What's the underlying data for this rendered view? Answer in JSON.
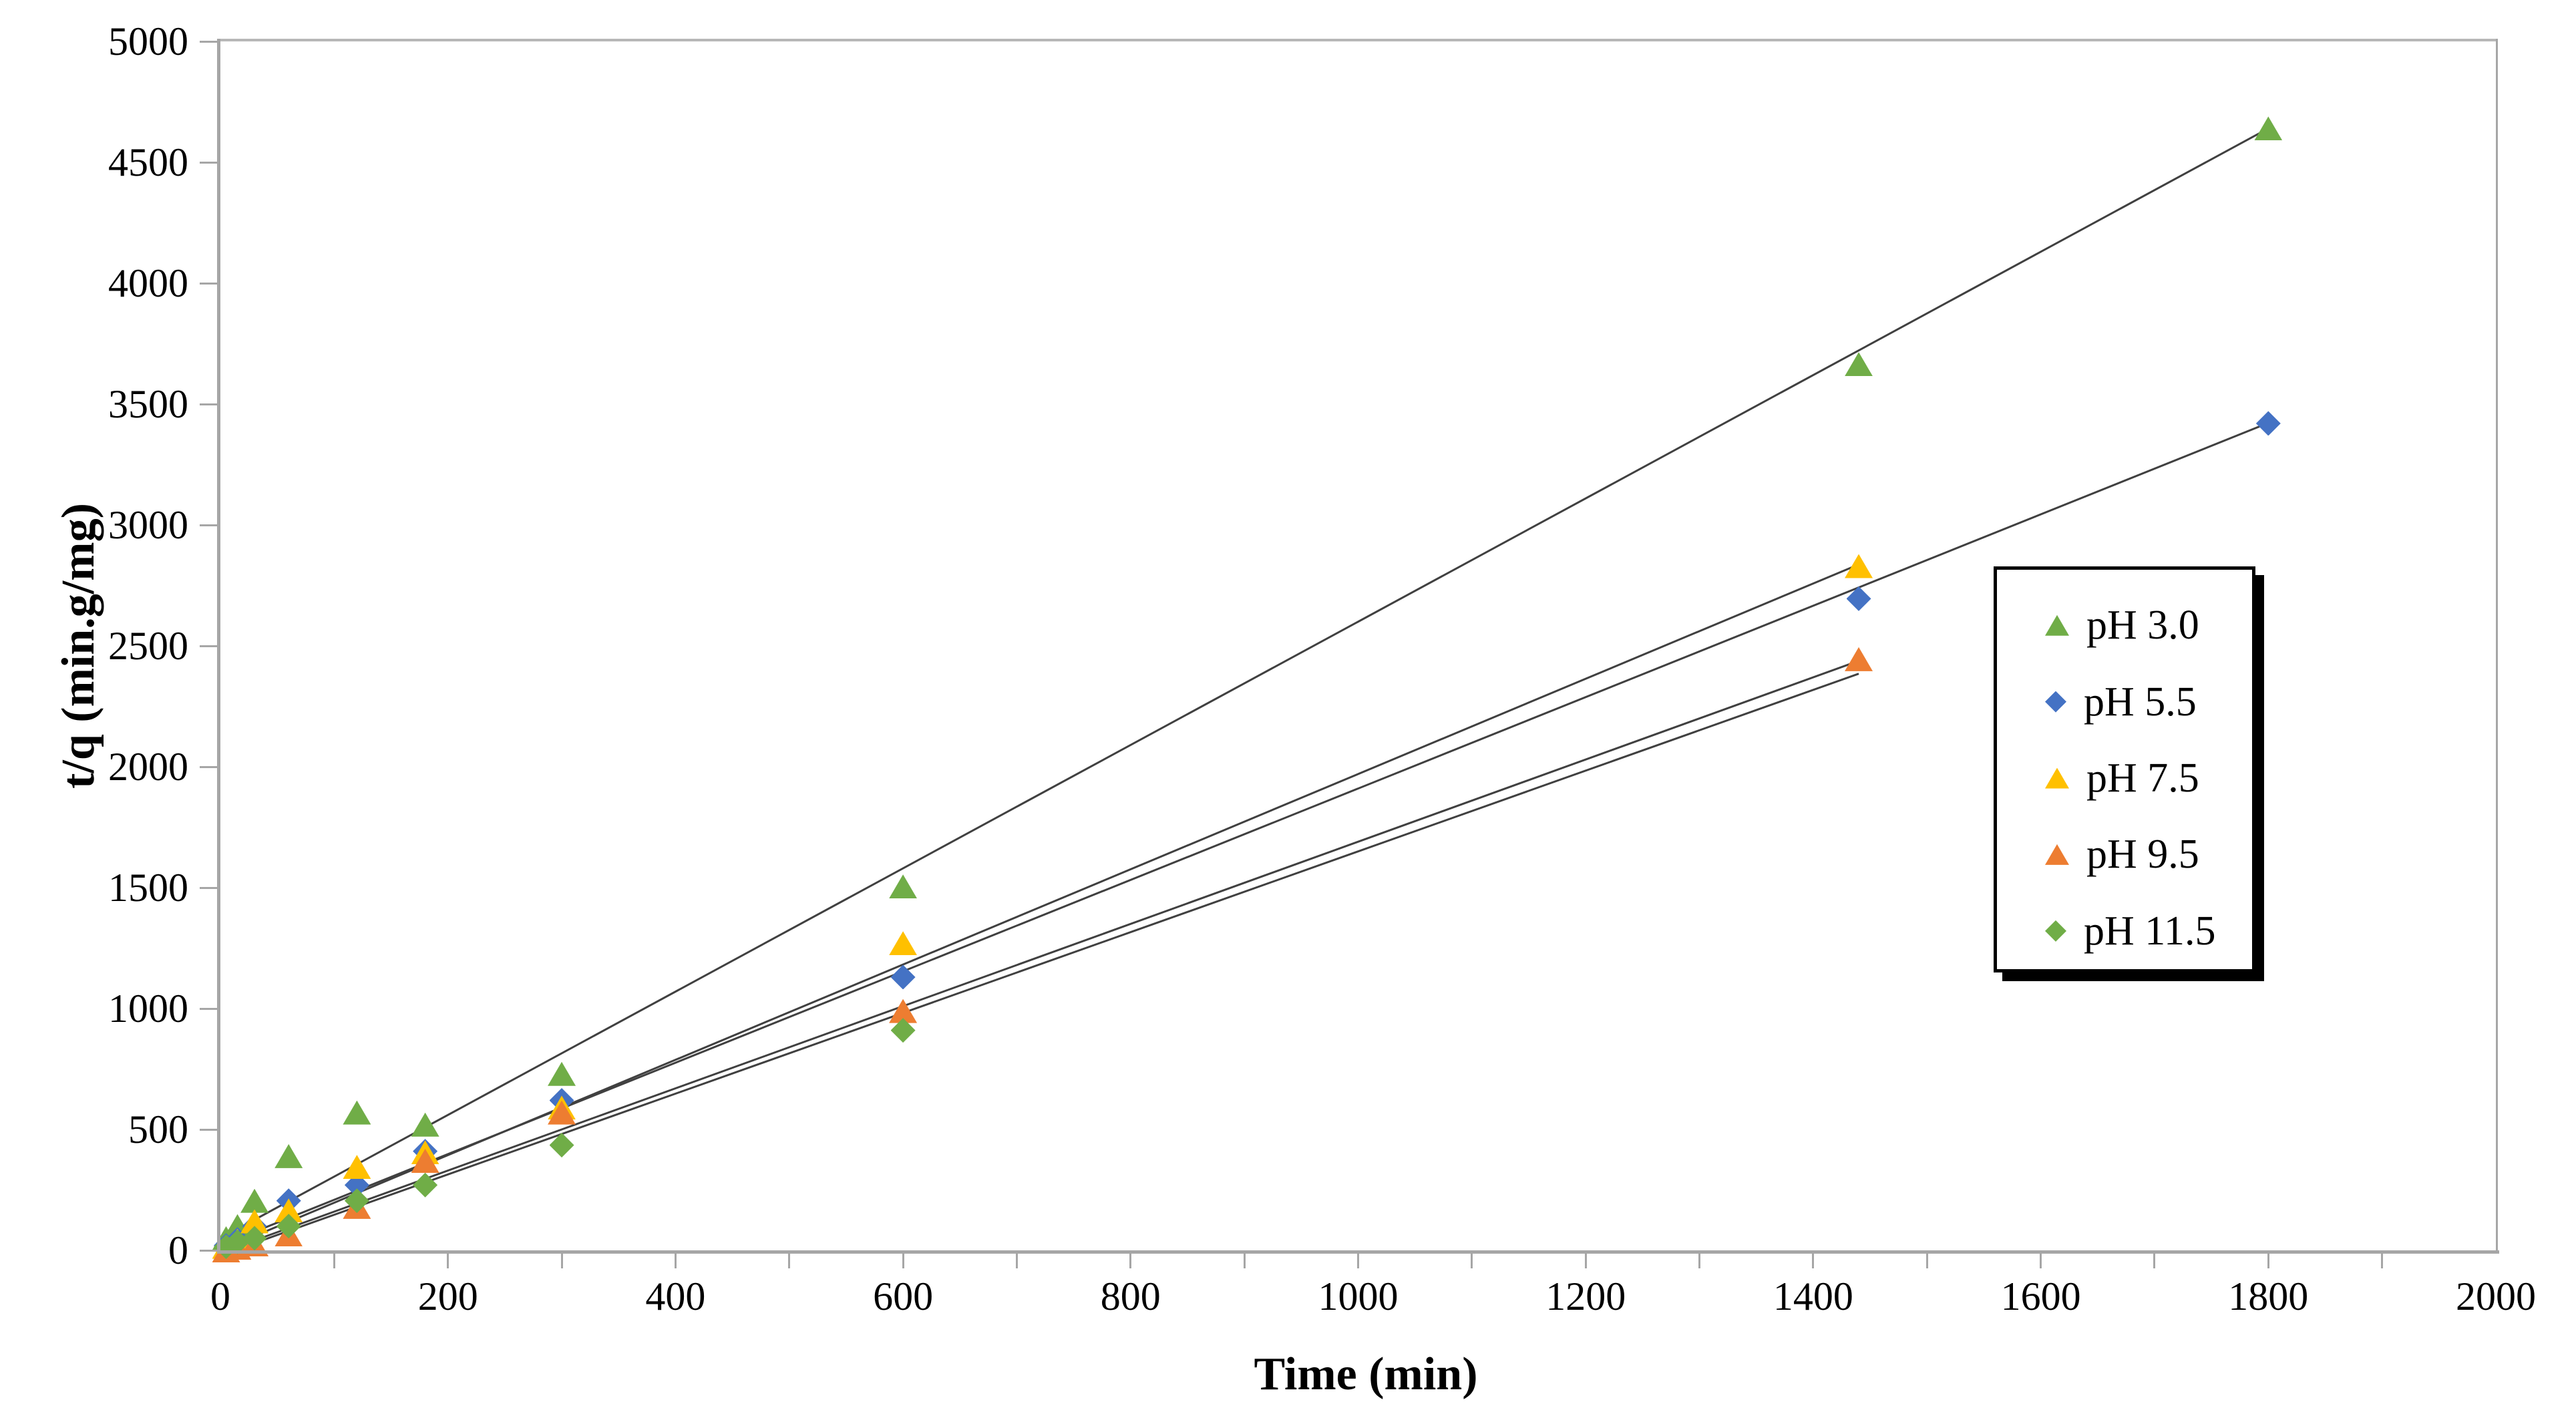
{
  "chart_data": {
    "type": "scatter",
    "title": "",
    "xlabel": "Time (min)",
    "ylabel": "t/q (min.g/mg)",
    "xlim": [
      0,
      2000
    ],
    "ylim": [
      0,
      5000
    ],
    "x_tick_step": 200,
    "x_minor_tick_step": 100,
    "y_tick_step": 500,
    "x_tick_labels": [
      "0",
      "200",
      "400",
      "600",
      "800",
      "1000",
      "1200",
      "1400",
      "1600",
      "1800",
      "2000"
    ],
    "y_tick_labels": [
      "0",
      "500",
      "1000",
      "1500",
      "2000",
      "2500",
      "3000",
      "3500",
      "4000",
      "4500",
      "5000"
    ],
    "grid": false,
    "legend_position": "middle-right",
    "axis_color": "#a6a6a6",
    "trendline_color": "#404040",
    "text_color": "#000000",
    "series": [
      {
        "name": "pH 3.0",
        "marker": "triangle",
        "color": "#70ad47",
        "x": [
          5,
          15,
          30,
          60,
          120,
          180,
          300,
          600,
          1440,
          1800
        ],
        "y": [
          50,
          100,
          205,
          390,
          570,
          520,
          730,
          1505,
          3665,
          4640
        ],
        "trend": {
          "slope": 2.55,
          "intercept": 50,
          "x_end": 1800
        }
      },
      {
        "name": "pH 5.5",
        "marker": "diamond",
        "color": "#4472c4",
        "x": [
          5,
          15,
          30,
          60,
          120,
          180,
          300,
          600,
          1440,
          1800
        ],
        "y": [
          20,
          45,
          100,
          205,
          270,
          410,
          620,
          1130,
          2695,
          3420
        ],
        "trend": {
          "slope": 1.89,
          "intercept": 20,
          "x_end": 1800
        }
      },
      {
        "name": "pH 7.5",
        "marker": "triangle",
        "color": "#ffc000",
        "x": [
          5,
          15,
          30,
          60,
          120,
          180,
          300,
          600,
          1440
        ],
        "y": [
          15,
          40,
          120,
          165,
          345,
          405,
          590,
          1270,
          2830
        ],
        "trend": {
          "slope": 1.97,
          "intercept": 0,
          "x_end": 1440
        }
      },
      {
        "name": "pH 9.5",
        "marker": "triangle",
        "color": "#ed7d31",
        "x": [
          5,
          15,
          30,
          60,
          120,
          180,
          300,
          600,
          1440
        ],
        "y": [
          0,
          10,
          25,
          65,
          180,
          370,
          570,
          990,
          2445
        ],
        "trend": {
          "slope": 1.7,
          "intercept": -10,
          "x_end": 1440
        }
      },
      {
        "name": "pH 11.5",
        "marker": "diamond",
        "color": "#70ad47",
        "x": [
          5,
          15,
          30,
          60,
          120,
          180,
          300,
          600
        ],
        "y": [
          15,
          35,
          50,
          100,
          205,
          270,
          435,
          910
        ],
        "trend": {
          "slope": 1.67,
          "intercept": -20,
          "x_end": 1440
        }
      }
    ]
  }
}
